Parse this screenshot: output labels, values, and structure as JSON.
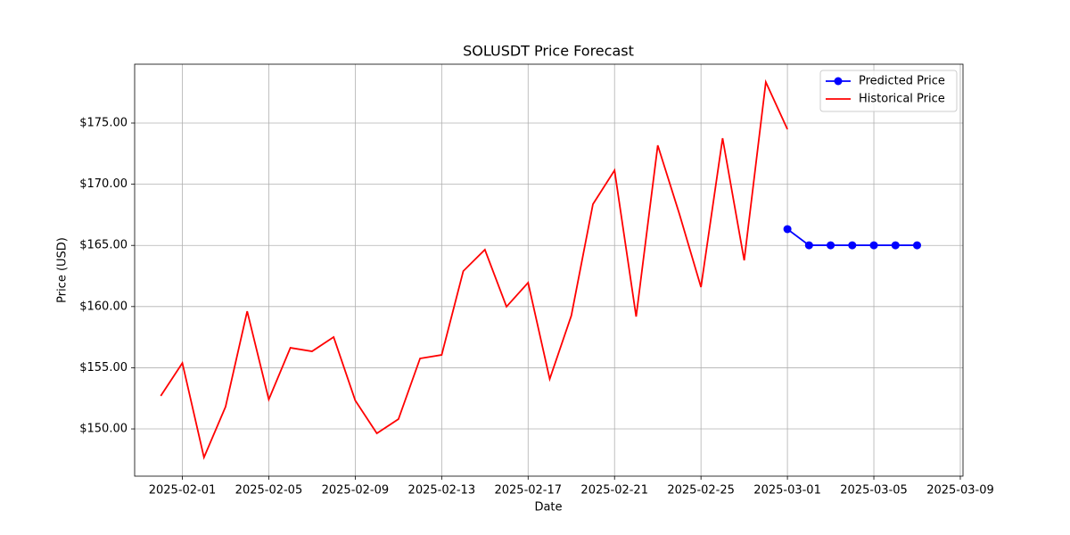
{
  "chart_data": {
    "type": "line",
    "title": "SOLUSDT Price Forecast",
    "xlabel": "Date",
    "ylabel": "Price (USD)",
    "xlim": [
      "2025-01-29T19:00",
      "2025-03-09T03:00"
    ],
    "xticks": [
      "2025-02-01",
      "2025-02-05",
      "2025-02-09",
      "2025-02-13",
      "2025-02-17",
      "2025-02-21",
      "2025-02-25",
      "2025-03-01",
      "2025-03-05",
      "2025-03-09"
    ],
    "ylim": [
      146.14,
      179.81
    ],
    "yticks": [
      {
        "value": 150,
        "label": "$150.00"
      },
      {
        "value": 155,
        "label": "$155.00"
      },
      {
        "value": 160,
        "label": "$160.00"
      },
      {
        "value": 165,
        "label": "$165.00"
      },
      {
        "value": 170,
        "label": "$170.00"
      },
      {
        "value": 175,
        "label": "$175.00"
      }
    ],
    "grid": true,
    "legend": "upper right",
    "series": [
      {
        "name": "Predicted Price",
        "color": "#0000ff",
        "marker": true,
        "x": [
          "2025-03-01",
          "2025-03-02",
          "2025-03-03",
          "2025-03-04",
          "2025-03-05",
          "2025-03-06",
          "2025-03-07"
        ],
        "values": [
          166.33,
          165.01,
          165.01,
          165.01,
          165.01,
          165.01,
          165.01
        ]
      },
      {
        "name": "Historical Price",
        "color": "#ff0000",
        "marker": false,
        "x": [
          "2025-01-31",
          "2025-02-01",
          "2025-02-02",
          "2025-02-03",
          "2025-02-04",
          "2025-02-05",
          "2025-02-06",
          "2025-02-07",
          "2025-02-08",
          "2025-02-09",
          "2025-02-10",
          "2025-02-11",
          "2025-02-12",
          "2025-02-13",
          "2025-02-14",
          "2025-02-15",
          "2025-02-16",
          "2025-02-17",
          "2025-02-18",
          "2025-02-19",
          "2025-02-20",
          "2025-02-21",
          "2025-02-22",
          "2025-02-23",
          "2025-02-24",
          "2025-02-25",
          "2025-02-26",
          "2025-02-27",
          "2025-02-28",
          "2025-03-01"
        ],
        "values": [
          152.7,
          155.39,
          147.67,
          151.82,
          159.62,
          152.41,
          156.63,
          156.34,
          157.51,
          152.33,
          149.64,
          150.8,
          155.76,
          156.05,
          162.9,
          164.65,
          159.99,
          161.95,
          154.08,
          159.26,
          168.37,
          171.14,
          159.18,
          173.18,
          167.57,
          161.59,
          173.76,
          163.78,
          178.35,
          174.49
        ]
      }
    ]
  }
}
